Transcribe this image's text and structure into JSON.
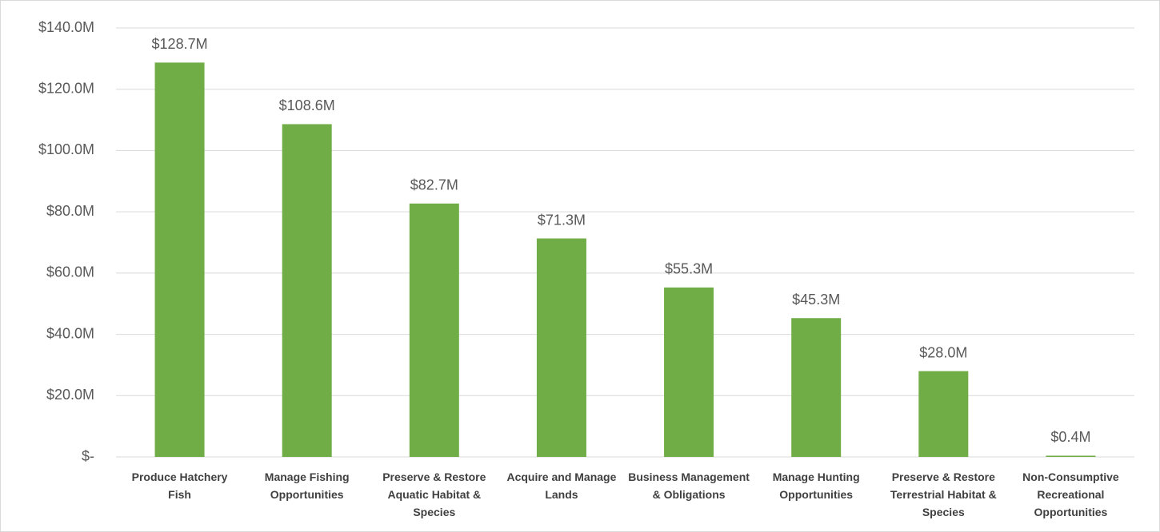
{
  "chart_data": {
    "type": "bar",
    "categories": [
      "Produce Hatchery Fish",
      "Manage Fishing Opportunities",
      "Preserve & Restore Aquatic Habitat & Species",
      "Acquire and Manage Lands",
      "Business Management & Obligations",
      "Manage Hunting Opportunities",
      "Preserve & Restore Terrestrial Habitat & Species",
      "Non-Consumptive Recreational Opportunities"
    ],
    "values": [
      128.7,
      108.6,
      82.7,
      71.3,
      55.3,
      45.3,
      28.0,
      0.4
    ],
    "value_labels": [
      "$128.7M",
      "$108.6M",
      "$82.7M",
      "$71.3M",
      "$55.3M",
      "$45.3M",
      "$28.0M",
      "$0.4M"
    ],
    "color": "#70ad47",
    "ylim": [
      0,
      140
    ],
    "yticks": [
      {
        "value": 0,
        "label": "$-"
      },
      {
        "value": 20,
        "label": "$20.0M"
      },
      {
        "value": 40,
        "label": "$40.0M"
      },
      {
        "value": 60,
        "label": "$60.0M"
      },
      {
        "value": 80,
        "label": "$80.0M"
      },
      {
        "value": 100,
        "label": "$100.0M"
      },
      {
        "value": 120,
        "label": "$120.0M"
      },
      {
        "value": 140,
        "label": "$140.0M"
      }
    ],
    "grid": true
  }
}
